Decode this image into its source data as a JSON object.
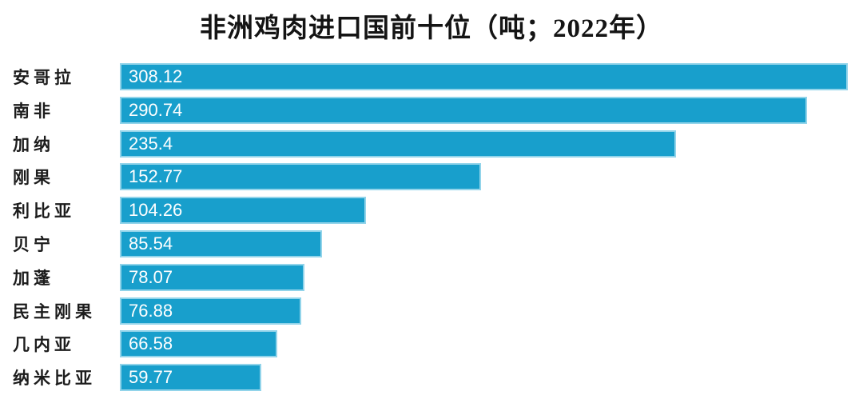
{
  "title": "非洲鸡肉进口国前十位（吨；2022年）",
  "colors": {
    "background": "#FFFFFF",
    "bar_fill": "#189FCC",
    "bar_border": "#92D4EA",
    "title_text": "#141414",
    "category_text": "#1C1C1C",
    "value_text": "#FFFFFF"
  },
  "chart_data": {
    "type": "bar",
    "orientation": "horizontal",
    "title": "非洲鸡肉进口国前十位（吨；2022年）",
    "unit": "吨",
    "year": "2022",
    "categories": [
      "安哥拉",
      "南非",
      "加纳",
      "刚果",
      "利比亚",
      "贝宁",
      "加蓬",
      "民主刚果",
      "几内亚",
      "纳米比亚"
    ],
    "values": [
      308.12,
      290.74,
      235.4,
      152.77,
      104.26,
      85.54,
      78.07,
      76.88,
      66.58,
      59.77
    ],
    "value_labels": [
      "308.12",
      "290.74",
      "235.4",
      "152.77",
      "104.26",
      "85.54",
      "78.07",
      "76.88",
      "66.58",
      "59.77"
    ],
    "xlim": [
      0,
      308.12
    ],
    "grid": false,
    "legend": false,
    "value_label_position": "inside-left"
  }
}
